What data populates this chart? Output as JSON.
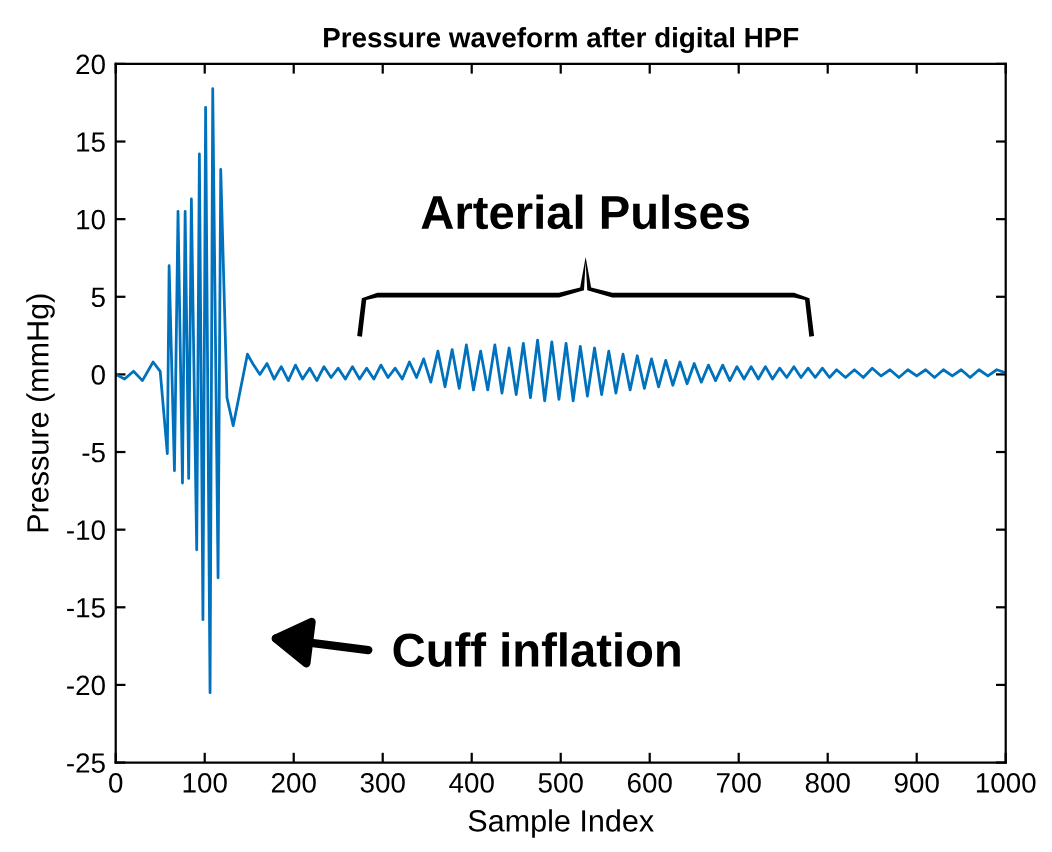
{
  "chart_data": {
    "type": "line",
    "title": "Pressure waveform after digital HPF",
    "xlabel": "Sample Index",
    "ylabel": "Pressure (mmHg)",
    "xlim": [
      0,
      1000
    ],
    "xticks": [
      0,
      100,
      200,
      300,
      400,
      500,
      600,
      700,
      800,
      900,
      1000
    ],
    "ylim": [
      -25,
      20
    ],
    "yticks": [
      -25,
      -20,
      -15,
      -10,
      -5,
      0,
      5,
      10,
      15,
      20
    ],
    "grid": false,
    "annotations": [
      "Arterial Pulses",
      "Cuff inflation"
    ],
    "series": [
      {
        "color": "#0072bd",
        "x": [
          0,
          10,
          20,
          30,
          42,
          50,
          58,
          60,
          66,
          70,
          75,
          78,
          82,
          85,
          91,
          94,
          98,
          101,
          106,
          109,
          115,
          118,
          125,
          132,
          140,
          148,
          155,
          162,
          170,
          178,
          186,
          194,
          202,
          210,
          218,
          226,
          234,
          242,
          250,
          258,
          266,
          274,
          282,
          290,
          298,
          306,
          314,
          322,
          330,
          338,
          346,
          354,
          362,
          370,
          378,
          386,
          394,
          402,
          410,
          418,
          426,
          434,
          442,
          450,
          458,
          466,
          474,
          482,
          490,
          498,
          506,
          514,
          522,
          530,
          538,
          546,
          554,
          562,
          570,
          578,
          586,
          594,
          602,
          610,
          618,
          626,
          634,
          642,
          650,
          658,
          666,
          674,
          682,
          690,
          698,
          706,
          714,
          722,
          730,
          738,
          746,
          754,
          762,
          770,
          778,
          786,
          794,
          802,
          810,
          820,
          830,
          840,
          850,
          860,
          870,
          880,
          890,
          900,
          910,
          920,
          930,
          940,
          950,
          960,
          970,
          980,
          990,
          1000
        ],
        "values": [
          0,
          -0.3,
          0.2,
          -0.4,
          0.8,
          0.2,
          -5.1,
          7.0,
          -6.2,
          10.5,
          -7.0,
          10.5,
          -6.7,
          11.3,
          -11.3,
          14.2,
          -15.8,
          17.2,
          -20.5,
          18.4,
          -13.1,
          13.2,
          -1.5,
          -3.3,
          -1.0,
          1.3,
          0.6,
          0,
          0.7,
          -0.3,
          0.5,
          -0.4,
          0.6,
          -0.3,
          0.4,
          -0.4,
          0.5,
          -0.2,
          0.4,
          -0.3,
          0.5,
          -0.3,
          0.4,
          -0.3,
          0.6,
          -0.2,
          0.4,
          -0.3,
          0.8,
          -0.2,
          1.0,
          -0.5,
          1.5,
          -0.8,
          1.6,
          -0.9,
          1.9,
          -1.0,
          1.5,
          -1.0,
          1.9,
          -1.2,
          1.7,
          -1.3,
          2.0,
          -1.5,
          2.2,
          -1.7,
          2.1,
          -1.6,
          2.0,
          -1.7,
          1.8,
          -1.4,
          1.7,
          -1.3,
          1.5,
          -1.2,
          1.3,
          -1.0,
          1.2,
          -0.9,
          1.0,
          -0.8,
          0.9,
          -0.7,
          0.8,
          -0.6,
          0.7,
          -0.5,
          0.6,
          -0.4,
          0.6,
          -0.4,
          0.5,
          -0.3,
          0.5,
          -0.3,
          0.5,
          -0.3,
          0.4,
          -0.2,
          0.5,
          -0.2,
          0.4,
          -0.2,
          0.4,
          -0.2,
          0.3,
          -0.2,
          0.3,
          -0.2,
          0.4,
          -0.1,
          0.3,
          -0.2,
          0.3,
          -0.1,
          0.3,
          -0.2,
          0.3,
          -0.1,
          0.3,
          -0.2,
          0.3,
          -0.1,
          0.3,
          0.1
        ]
      }
    ]
  }
}
